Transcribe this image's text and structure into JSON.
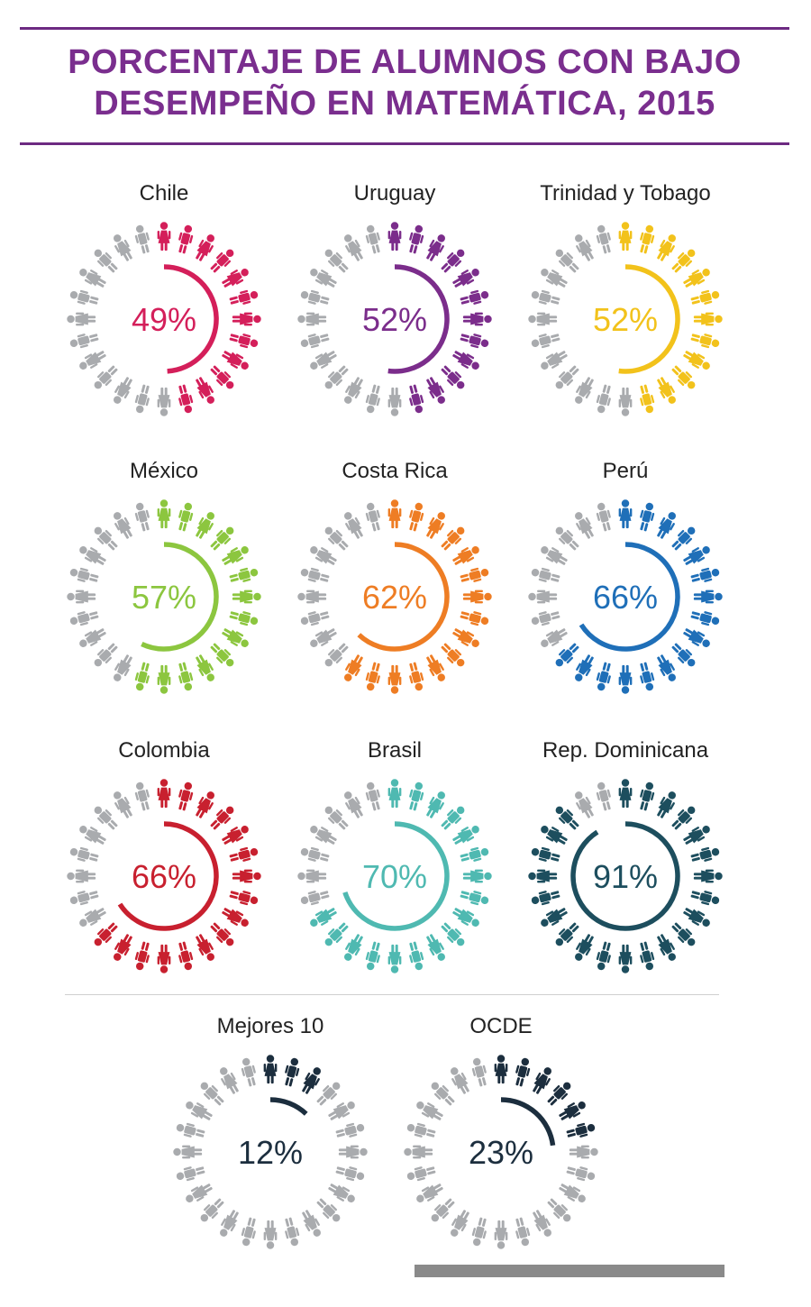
{
  "header": {
    "title_line1": "PORCENTAJE DE ALUMNOS CON BAJO",
    "title_line2": "DESEMPEÑO EN MATEMÁTICA, 2015"
  },
  "colors": {
    "inactive": "#a9abae",
    "title": "#7a2e8e"
  },
  "chart_data": {
    "type": "pie",
    "unit": "%",
    "categories": [
      "Chile",
      "Uruguay",
      "Trinidad y Tobago",
      "México",
      "Costa Rica",
      "Perú",
      "Colombia",
      "Brasil",
      "Rep. Dominicana",
      "Mejores 10",
      "OCDE"
    ],
    "values": [
      49,
      52,
      52,
      57,
      62,
      66,
      66,
      70,
      91,
      12,
      23
    ],
    "items": [
      {
        "name": "Chile",
        "value": 49,
        "label": "49%",
        "color": "#d41f5a"
      },
      {
        "name": "Uruguay",
        "value": 52,
        "label": "52%",
        "color": "#7b2d8b"
      },
      {
        "name": "Trinidad y Tobago",
        "value": 52,
        "label": "52%",
        "color": "#f2c21b"
      },
      {
        "name": "México",
        "value": 57,
        "label": "57%",
        "color": "#8cc63f"
      },
      {
        "name": "Costa Rica",
        "value": 62,
        "label": "62%",
        "color": "#ee7d24"
      },
      {
        "name": "Perú",
        "value": 66,
        "label": "66%",
        "color": "#1f6fb8"
      },
      {
        "name": "Colombia",
        "value": 66,
        "label": "66%",
        "color": "#c8202f"
      },
      {
        "name": "Brasil",
        "value": 70,
        "label": "70%",
        "color": "#4fb9b1"
      },
      {
        "name": "Rep. Dominicana",
        "value": 91,
        "label": "91%",
        "color": "#1d4e5e"
      },
      {
        "name": "Mejores 10",
        "value": 12,
        "label": "12%",
        "color": "#1c2e3e"
      },
      {
        "name": "OCDE",
        "value": 23,
        "label": "23%",
        "color": "#1c2e3e"
      }
    ]
  }
}
